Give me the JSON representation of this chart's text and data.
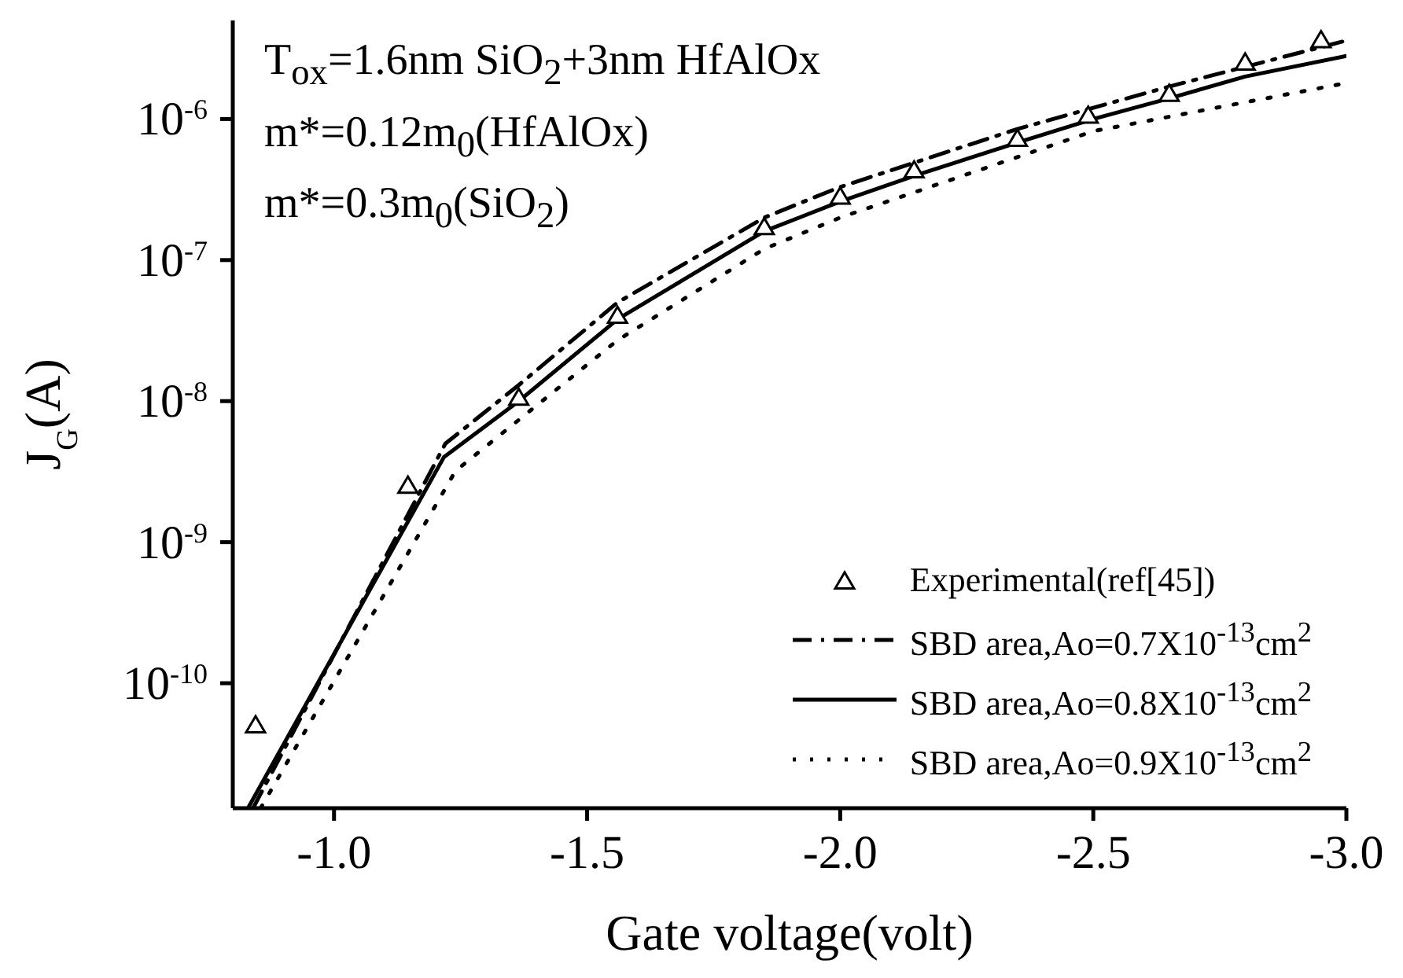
{
  "chart_data": {
    "type": "line",
    "xlabel": "Gate voltage(volt)",
    "ylabel": "J$_{G}$(A)",
    "annotations": [
      "T$_{ox}$=1.6nm SiO$_{2}$+3nm HfAlOx",
      "m*=0.12m$_{0}$(HfAlOx)",
      "m*=0.3m$_{0}$(SiO$_{2}$)"
    ],
    "xlim": [
      -0.8,
      -3.0
    ],
    "xticks": [
      {
        "value": -1.0,
        "label": "-1.0"
      },
      {
        "value": -1.5,
        "label": "-1.5"
      },
      {
        "value": -2.0,
        "label": "-2.0"
      },
      {
        "value": -2.5,
        "label": "-2.5"
      },
      {
        "value": -3.0,
        "label": "-3.0"
      }
    ],
    "ylim": [
      1.3e-11,
      5e-06
    ],
    "yticks": [
      {
        "value": 1e-10,
        "label": "10$^{-10}$"
      },
      {
        "value": 1e-09,
        "label": "10$^{-9}$"
      },
      {
        "value": 1e-08,
        "label": "10$^{-8}$"
      },
      {
        "value": 1e-07,
        "label": "10$^{-7}$"
      },
      {
        "value": 1e-06,
        "label": "10$^{-6}$"
      }
    ],
    "log": "y",
    "grid": false,
    "legend": "bottom right",
    "series": [
      {
        "name": "Experimental(ref[45])",
        "type": "scatter",
        "marker": "triangle",
        "color": "#000000",
        "x": [
          -0.845,
          -1.146,
          -1.365,
          -1.56,
          -1.85,
          -2.0,
          -2.146,
          -2.35,
          -2.49,
          -2.65,
          -2.8,
          -2.95
        ],
        "values": [
          5e-11,
          2.5e-09,
          1.05e-08,
          4e-08,
          1.7e-07,
          2.8e-07,
          4.3e-07,
          7.2e-07,
          1.05e-06,
          1.5e-06,
          2.5e-06,
          3.6e-06
        ]
      },
      {
        "name": "SBD area,Ao=0.7X10$^{-13}$cm$^{2}$",
        "line_style": "dashdot",
        "marker": "none",
        "color": "#000000",
        "x": [
          -0.84,
          -1.22,
          -1.365,
          -1.56,
          -1.85,
          -2.0,
          -2.35,
          -2.65,
          -3.0
        ],
        "values": [
          1.3e-11,
          5e-09,
          1.3e-08,
          5e-08,
          2e-07,
          3.3e-07,
          8.5e-07,
          1.7e-06,
          3.6e-06
        ]
      },
      {
        "name": "SBD area,Ao=0.8X10$^{-13}$cm$^{2}$",
        "line_style": "solid",
        "marker": "none",
        "color": "#000000",
        "x": [
          -0.83,
          -1.217,
          -1.365,
          -1.56,
          -1.85,
          -2.0,
          -2.15,
          -2.35,
          -2.5,
          -2.65,
          -2.8,
          -3.0
        ],
        "values": [
          1.3e-11,
          4e-09,
          1e-08,
          3.8e-08,
          1.6e-07,
          2.6e-07,
          4e-07,
          6.8e-07,
          1e-06,
          1.4e-06,
          2e-06,
          2.8e-06
        ]
      },
      {
        "name": "SBD area,Ao=0.9X10$^{-13}$cm$^{2}$",
        "line_style": "dotted",
        "marker": "none",
        "color": "#000000",
        "x": [
          -0.855,
          -1.24,
          -1.56,
          -1.85,
          -2.0,
          -2.5,
          -3.0
        ],
        "values": [
          1.3e-11,
          3.2e-09,
          2.7e-08,
          1.2e-07,
          2e-07,
          8.2e-07,
          1.8e-06
        ]
      }
    ]
  }
}
